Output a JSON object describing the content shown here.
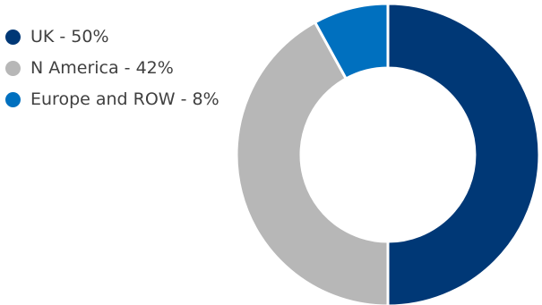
{
  "chart_data": {
    "type": "pie",
    "subtype": "donut",
    "slices": [
      {
        "label": "UK - 50%",
        "value": 50,
        "color": "#003876"
      },
      {
        "label": "N America - 42%",
        "value": 42,
        "color": "#b7b7b7"
      },
      {
        "label": "Europe and ROW - 8%",
        "value": 8,
        "color": "#0070bf"
      }
    ],
    "legend_position": "top-left"
  }
}
